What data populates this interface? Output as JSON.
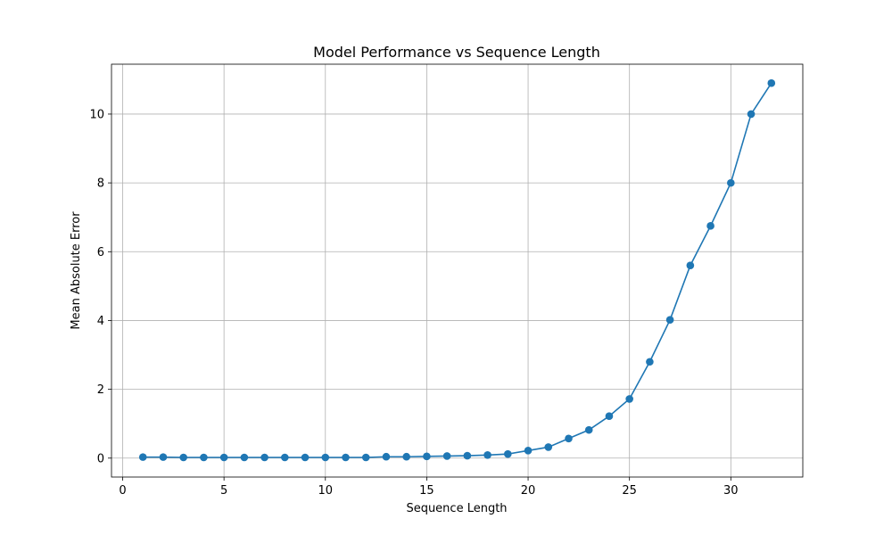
{
  "chart_data": {
    "type": "line",
    "title": "Model Performance vs Sequence Length",
    "xlabel": "Sequence Length",
    "ylabel": "Mean Absolute Error",
    "xlim": [
      -0.55,
      33.55
    ],
    "ylim": [
      -0.55,
      11.45
    ],
    "xticks": [
      0,
      5,
      10,
      15,
      20,
      25,
      30
    ],
    "yticks": [
      0,
      2,
      4,
      6,
      8,
      10
    ],
    "grid": true,
    "color": "#1f77b4",
    "series": [
      {
        "x": [
          1,
          2,
          3,
          4,
          5,
          6,
          7,
          8,
          9,
          10,
          11,
          12,
          13,
          14,
          15,
          16,
          17,
          18,
          19,
          20,
          21,
          22,
          23,
          24,
          25,
          26,
          27,
          28,
          29,
          30,
          31,
          32
        ],
        "values": [
          0.03,
          0.03,
          0.02,
          0.02,
          0.02,
          0.02,
          0.02,
          0.02,
          0.02,
          0.02,
          0.02,
          0.02,
          0.04,
          0.04,
          0.05,
          0.06,
          0.07,
          0.09,
          0.12,
          0.22,
          0.32,
          0.57,
          0.82,
          1.22,
          1.72,
          2.8,
          4.02,
          5.6,
          6.75,
          8.0,
          10.0,
          10.9
        ]
      }
    ]
  }
}
